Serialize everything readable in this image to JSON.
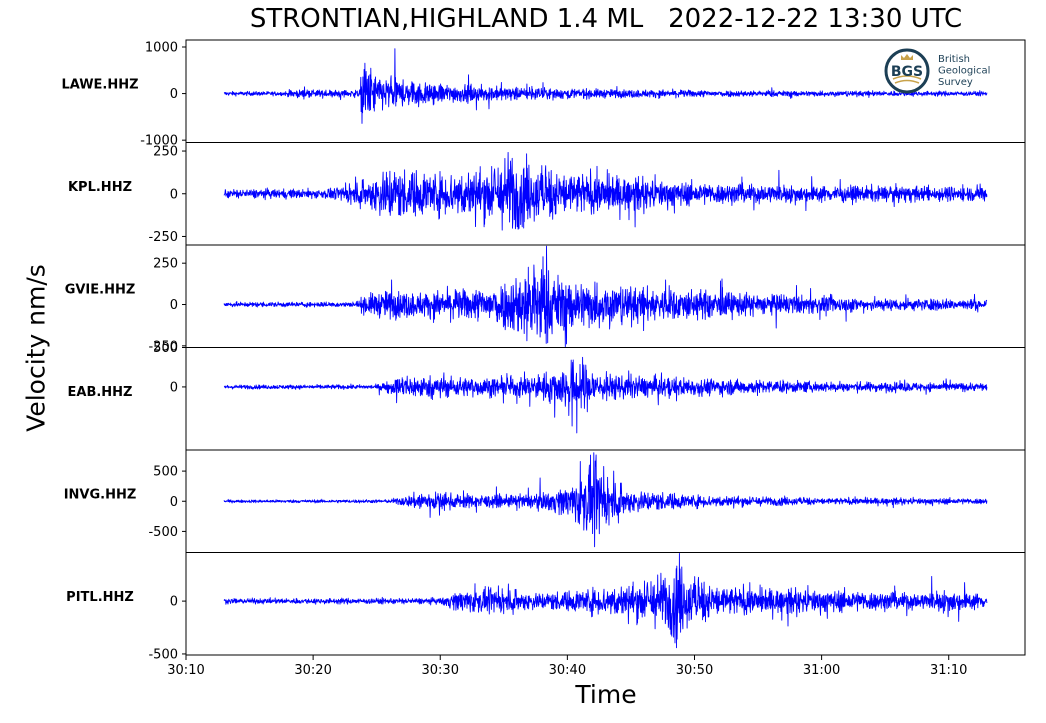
{
  "title": "STRONTIAN,HIGHLAND 1.4 ML   2022-12-22 13:30 UTC",
  "logo": {
    "abbrev": "BGS",
    "lines": [
      "British",
      "Geological",
      "Survey"
    ],
    "ring_color": "#1c3f55",
    "accent_color": "#c8a24a"
  },
  "colors": {
    "trace": "#0000ff"
  },
  "chart_data": {
    "type": "line",
    "xlabel": "Time",
    "ylabel": "Velocity nm/s",
    "x_ticks": [
      "30:10",
      "30:20",
      "30:30",
      "30:40",
      "30:50",
      "31:00",
      "31:10"
    ],
    "x_tick_seconds": [
      10,
      20,
      30,
      40,
      50,
      60,
      70
    ],
    "xlim": [
      10,
      76
    ],
    "trace_span_seconds": [
      13,
      73
    ],
    "series": [
      {
        "name": "LAWE.HHZ",
        "ylim": [
          -1050,
          1150
        ],
        "y_ticks": [
          1000,
          0,
          -1000
        ],
        "y_tick_labels": [
          "1000",
          "0",
          "-1000"
        ],
        "noise": 18,
        "envelope": [
          [
            13,
            25
          ],
          [
            17.8,
            25
          ],
          [
            18,
            70
          ],
          [
            23.7,
            70
          ],
          [
            23.9,
            1000
          ],
          [
            24.2,
            750
          ],
          [
            25,
            420
          ],
          [
            27,
            300
          ],
          [
            30,
            220
          ],
          [
            33,
            160
          ],
          [
            38,
            110
          ],
          [
            45,
            70
          ],
          [
            55,
            45
          ],
          [
            65,
            35
          ],
          [
            73,
            30
          ]
        ]
      },
      {
        "name": "KPL.HHZ",
        "ylim": [
          -300,
          300
        ],
        "y_ticks": [
          250,
          0,
          -250
        ],
        "y_tick_labels": [
          "250",
          "0",
          "-250"
        ],
        "noise": 12,
        "envelope": [
          [
            13,
            12
          ],
          [
            20,
            14
          ],
          [
            22,
            22
          ],
          [
            24.3,
            70
          ],
          [
            25,
            120
          ],
          [
            26,
            170
          ],
          [
            27,
            145
          ],
          [
            30,
            120
          ],
          [
            33,
            150
          ],
          [
            35,
            210
          ],
          [
            35.6,
            290
          ],
          [
            36.3,
            200
          ],
          [
            38,
            160
          ],
          [
            40,
            130
          ],
          [
            45,
            90
          ],
          [
            50,
            55
          ],
          [
            60,
            35
          ],
          [
            73,
            30
          ]
        ]
      },
      {
        "name": "GVIE.HHZ",
        "ylim": [
          -260,
          360
        ],
        "y_ticks": [
          250,
          0,
          -250
        ],
        "y_tick_labels": [
          "250",
          "0",
          "-250"
        ],
        "noise": 8,
        "envelope": [
          [
            13,
            5
          ],
          [
            23,
            6
          ],
          [
            23.6,
            20
          ],
          [
            24,
            55
          ],
          [
            26,
            90
          ],
          [
            28,
            70
          ],
          [
            33,
            100
          ],
          [
            35,
            150
          ],
          [
            37,
            260
          ],
          [
            37.5,
            330
          ],
          [
            38.5,
            220
          ],
          [
            40,
            160
          ],
          [
            42,
            150
          ],
          [
            45,
            110
          ],
          [
            50,
            90
          ],
          [
            55,
            60
          ],
          [
            60,
            45
          ],
          [
            65,
            30
          ],
          [
            73,
            25
          ]
        ]
      },
      {
        "name": "EAB.HHZ",
        "ylim": [
          -800,
          500
        ],
        "y_ticks": [
          500,
          0
        ],
        "y_tick_labels": [
          "500",
          "0"
        ],
        "noise": 12,
        "envelope": [
          [
            13,
            12
          ],
          [
            25,
            15
          ],
          [
            26.3,
            90
          ],
          [
            27,
            150
          ],
          [
            30,
            130
          ],
          [
            35,
            110
          ],
          [
            38,
            170
          ],
          [
            40,
            300
          ],
          [
            40.9,
            440
          ],
          [
            41.5,
            320
          ],
          [
            42.5,
            180
          ],
          [
            45,
            140
          ],
          [
            50,
            110
          ],
          [
            55,
            80
          ],
          [
            60,
            55
          ],
          [
            73,
            40
          ]
        ]
      },
      {
        "name": "INVG.HHZ",
        "ylim": [
          -850,
          850
        ],
        "y_ticks": [
          500,
          0,
          -500
        ],
        "y_tick_labels": [
          "500",
          "0",
          "-500"
        ],
        "noise": 12,
        "envelope": [
          [
            13,
            10
          ],
          [
            26,
            15
          ],
          [
            27.5,
            90
          ],
          [
            28.5,
            180
          ],
          [
            31,
            120
          ],
          [
            35,
            90
          ],
          [
            38,
            130
          ],
          [
            40,
            260
          ],
          [
            41.4,
            560
          ],
          [
            42.2,
            720
          ],
          [
            43,
            380
          ],
          [
            45,
            200
          ],
          [
            50,
            100
          ],
          [
            55,
            70
          ],
          [
            60,
            45
          ],
          [
            73,
            35
          ]
        ]
      },
      {
        "name": "PITL.HHZ",
        "ylim": [
          -510,
          460
        ],
        "y_ticks": [
          0,
          -500
        ],
        "y_tick_labels": [
          "0",
          "-500"
        ],
        "noise": 12,
        "envelope": [
          [
            13,
            10
          ],
          [
            30,
            15
          ],
          [
            30.8,
            60
          ],
          [
            32,
            110
          ],
          [
            35,
            95
          ],
          [
            38,
            75
          ],
          [
            40,
            90
          ],
          [
            45,
            170
          ],
          [
            48,
            310
          ],
          [
            48.6,
            450
          ],
          [
            49.6,
            250
          ],
          [
            52,
            150
          ],
          [
            55,
            115
          ],
          [
            60,
            105
          ],
          [
            65,
            80
          ],
          [
            68,
            70
          ],
          [
            70,
            110
          ],
          [
            71.5,
            70
          ],
          [
            73,
            60
          ]
        ]
      }
    ]
  }
}
